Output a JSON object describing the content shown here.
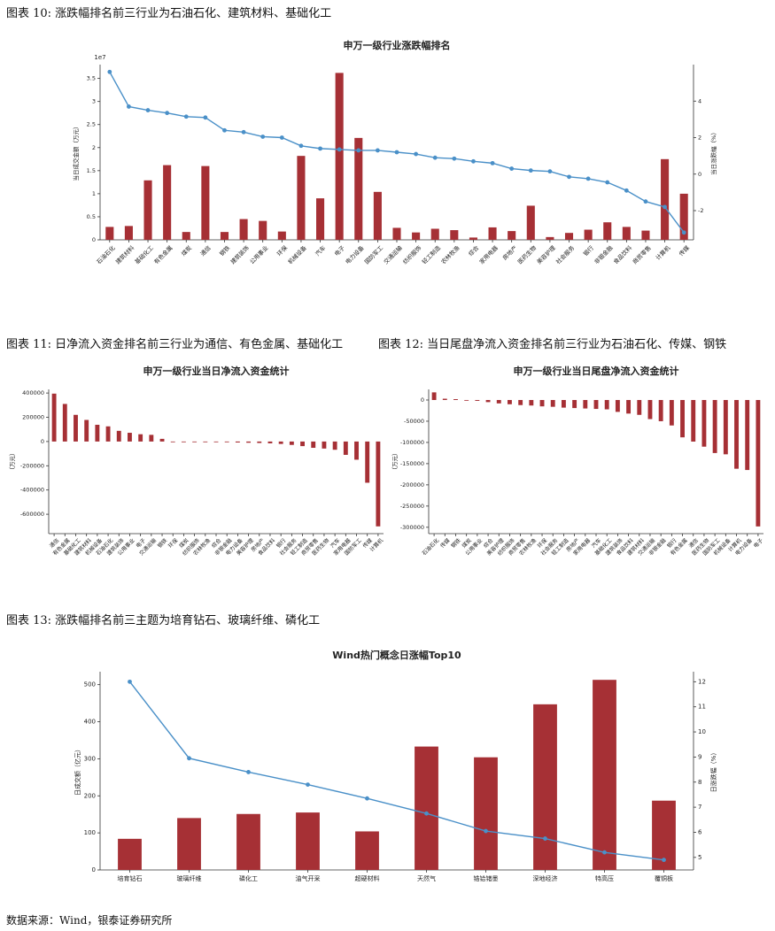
{
  "captions": {
    "fig10": "图表 10: 涨跌幅排名前三行业为石油石化、建筑材料、基础化工",
    "fig11": "图表 11: 日净流入资金排名前三行业为通信、有色金属、基础化工",
    "fig12": "图表 12: 当日尾盘净流入资金排名前三行业为石油石化、传媒、钢铁",
    "fig13": "图表 13: 涨跌幅排名前三主题为培育钻石、玻璃纤维、磷化工"
  },
  "source": "数据来源：Wind，银泰证券研究所",
  "colors": {
    "bar": "#a63035",
    "line": "#4a90c8"
  },
  "chart_data": [
    {
      "id": "c1",
      "type": "bar+line",
      "title": "申万一级行业涨跌幅排名",
      "ylabel_left": "当日成交金额（万元）",
      "ylabel_right": "当日涨跌幅（%）",
      "offset_label": "1e7",
      "ylim_left": [
        0,
        3.8
      ],
      "ylim_right": [
        -3.6,
        6
      ],
      "yticks_left": [
        0,
        0.5,
        1.0,
        1.5,
        2.0,
        2.5,
        3.0,
        3.5
      ],
      "yticks_right": [
        -2,
        0,
        2,
        4
      ],
      "categories": [
        "石油石化",
        "建筑材料",
        "基础化工",
        "有色金属",
        "煤炭",
        "通信",
        "钢铁",
        "建筑装饰",
        "公用事业",
        "环保",
        "机械设备",
        "汽车",
        "电子",
        "电力设备",
        "国防军工",
        "交通运输",
        "纺织服饰",
        "轻工制造",
        "农林牧渔",
        "综合",
        "家用电器",
        "房地产",
        "医药生物",
        "美容护理",
        "社会服务",
        "银行",
        "非银金融",
        "食品饮料",
        "商贸零售",
        "计算机",
        "传媒"
      ],
      "bars": [
        0.28,
        0.3,
        1.29,
        1.62,
        0.17,
        1.6,
        0.17,
        0.45,
        0.41,
        0.18,
        1.82,
        0.9,
        3.62,
        2.21,
        1.04,
        0.26,
        0.16,
        0.24,
        0.21,
        0.05,
        0.27,
        0.19,
        0.74,
        0.06,
        0.15,
        0.22,
        0.38,
        0.28,
        0.2,
        1.75,
        1.0
      ],
      "line": [
        5.6,
        3.7,
        3.5,
        3.35,
        3.15,
        3.1,
        2.4,
        2.3,
        2.05,
        2.0,
        1.55,
        1.4,
        1.35,
        1.3,
        1.3,
        1.2,
        1.1,
        0.9,
        0.85,
        0.7,
        0.6,
        0.3,
        0.2,
        0.15,
        -0.15,
        -0.25,
        -0.45,
        -0.9,
        -1.5,
        -1.8,
        -3.2
      ]
    },
    {
      "id": "c2",
      "type": "bar",
      "title": "申万一级行业当日净流入资金统计",
      "ylabel": "（万元）",
      "ylim": [
        -760000,
        430000
      ],
      "yticks": [
        -600000,
        -400000,
        -200000,
        0,
        200000,
        400000
      ],
      "categories": [
        "通信",
        "有色金属",
        "基础化工",
        "建筑材料",
        "机械设备",
        "石油石化",
        "建筑装饰",
        "公用事业",
        "电子",
        "交通运输",
        "钢铁",
        "环保",
        "煤炭",
        "纺织服饰",
        "农林牧渔",
        "综合",
        "非银金融",
        "电力设备",
        "美容护理",
        "房地产",
        "食品饮料",
        "银行",
        "社会服务",
        "轻工制造",
        "商贸零售",
        "医药生物",
        "汽车",
        "家用电器",
        "国防军工",
        "传媒",
        "计算机"
      ],
      "values": [
        395000,
        310000,
        220000,
        178000,
        138000,
        125000,
        88000,
        72000,
        60000,
        55000,
        22000,
        -2000,
        -3000,
        -4000,
        -4000,
        -5000,
        -6000,
        -8000,
        -10000,
        -12000,
        -15000,
        -20000,
        -28000,
        -38000,
        -52000,
        -58000,
        -68000,
        -110000,
        -150000,
        -340000,
        -700000
      ]
    },
    {
      "id": "c3",
      "type": "bar",
      "title": "申万一级行业当日尾盘净流入资金统计",
      "ylabel": "（万元）",
      "ylim": [
        -315000,
        25000
      ],
      "yticks": [
        -300000,
        -250000,
        -200000,
        -150000,
        -100000,
        -50000,
        0
      ],
      "categories": [
        "石油石化",
        "传媒",
        "钢铁",
        "煤炭",
        "公用事业",
        "综合",
        "美容护理",
        "纺织服饰",
        "商贸零售",
        "农林牧渔",
        "环保",
        "社会服务",
        "轻工制造",
        "房地产",
        "家用电器",
        "汽车",
        "基础化工",
        "建筑装饰",
        "食品饮料",
        "建筑材料",
        "交通运输",
        "非银金融",
        "银行",
        "有色金属",
        "通信",
        "医药生物",
        "国防军工",
        "机械设备",
        "计算机",
        "电力设备",
        "电子"
      ],
      "values": [
        18000,
        3000,
        2000,
        -1000,
        -2000,
        -5000,
        -8000,
        -10000,
        -12000,
        -13000,
        -15000,
        -16000,
        -18000,
        -19000,
        -20000,
        -21000,
        -22000,
        -28000,
        -32000,
        -35000,
        -45000,
        -50000,
        -60000,
        -88000,
        -98000,
        -110000,
        -125000,
        -128000,
        -162000,
        -165000,
        -298000
      ]
    },
    {
      "id": "c4",
      "type": "bar+line",
      "title": "Wind热门概念日涨幅Top10",
      "ylabel_left": "日成交额（亿元）",
      "ylabel_right": "日涨跌幅（%）",
      "ylim_left": [
        0,
        535
      ],
      "ylim_right": [
        4.5,
        12.4
      ],
      "yticks_left": [
        0,
        100,
        200,
        300,
        400,
        500
      ],
      "yticks_right": [
        5,
        6,
        7,
        8,
        9,
        10,
        11,
        12
      ],
      "categories": [
        "培育钻石",
        "玻璃纤维",
        "磷化工",
        "油气开采",
        "超硬材料",
        "天然气",
        "锆铪锗墨",
        "深地经济",
        "特高压",
        "覆铜板"
      ],
      "bars": [
        84,
        140,
        151,
        155,
        104,
        333,
        304,
        447,
        513,
        187
      ],
      "line": [
        12.0,
        8.95,
        8.4,
        7.9,
        7.35,
        6.75,
        6.05,
        5.75,
        5.2,
        4.9
      ]
    }
  ]
}
